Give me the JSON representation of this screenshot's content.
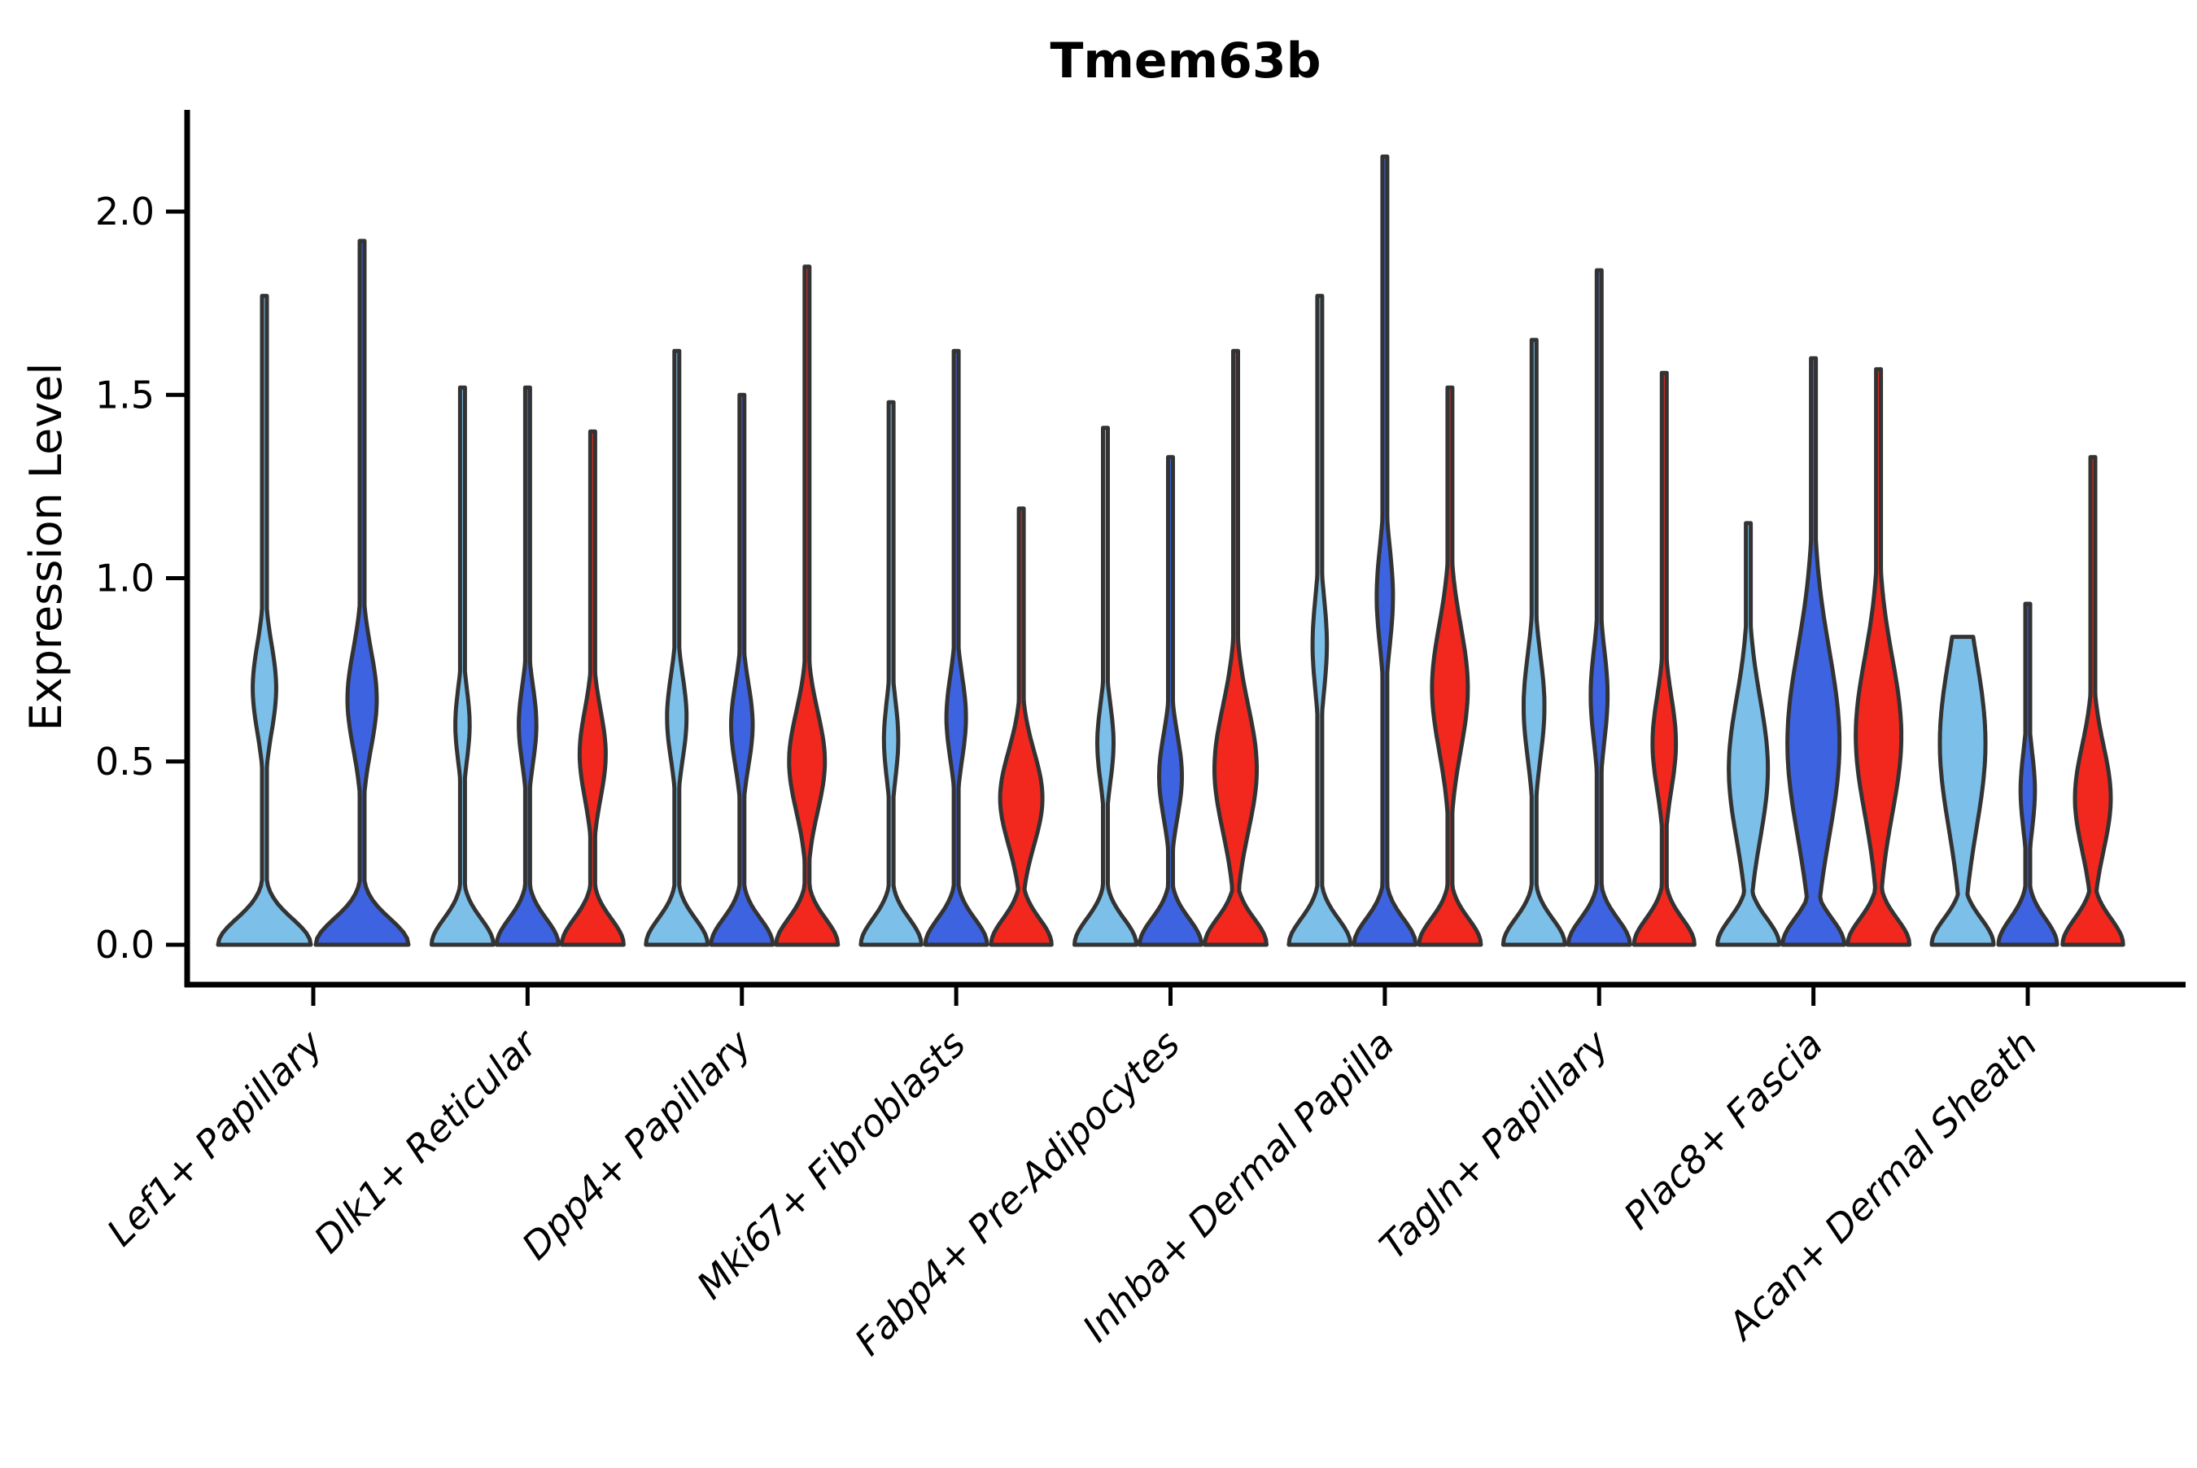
{
  "colors": {
    "light_blue": "#7CC0EA",
    "dark_blue": "#3E63E0",
    "red": "#F2281E",
    "outline": "#333333",
    "axis": "#000000"
  },
  "chart_data": {
    "type": "violin",
    "title": "Tmem63b",
    "xlabel": "",
    "ylabel": "Expression Level",
    "ylim": [
      0.0,
      2.15
    ],
    "yticks": [
      0.0,
      0.5,
      1.0,
      1.5,
      2.0
    ],
    "ytick_labels": [
      "0.0",
      "0.5",
      "1.0",
      "1.5",
      "2.0"
    ],
    "grid": false,
    "legend_position": "none",
    "categories": [
      "Lef1+ Papillary",
      "Dlk1+ Reticular",
      "Dpp4+ Papillary",
      "Mki67+ Fibroblasts",
      "Fabp4+ Pre-Adipocytes",
      "Inhba+ Dermal Papilla",
      "Tagln+ Papillary",
      "Plac8+ Fascia",
      "Acan+ Dermal Sheath"
    ],
    "groups": [
      {
        "category": "Lef1+ Papillary",
        "violins": [
          {
            "color": "light_blue",
            "max_expression": 1.77,
            "zero_width": 0.95,
            "bulge": {
              "center": 0.7,
              "width": 0.24,
              "sigma": 0.17
            }
          },
          {
            "color": "dark_blue",
            "max_expression": 1.92,
            "zero_width": 0.95,
            "bulge": {
              "center": 0.67,
              "width": 0.3,
              "sigma": 0.19
            }
          }
        ]
      },
      {
        "category": "Dlk1+ Reticular",
        "violins": [
          {
            "color": "light_blue",
            "max_expression": 1.52,
            "zero_width": 0.95,
            "bulge": {
              "center": 0.6,
              "width": 0.22,
              "sigma": 0.14
            }
          },
          {
            "color": "dark_blue",
            "max_expression": 1.52,
            "zero_width": 0.95,
            "bulge": {
              "center": 0.6,
              "width": 0.27,
              "sigma": 0.15
            }
          },
          {
            "color": "red",
            "max_expression": 1.4,
            "zero_width": 0.95,
            "bulge": {
              "center": 0.52,
              "width": 0.4,
              "sigma": 0.17
            }
          }
        ]
      },
      {
        "category": "Dpp4+ Papillary",
        "violins": [
          {
            "color": "light_blue",
            "max_expression": 1.62,
            "zero_width": 0.95,
            "bulge": {
              "center": 0.62,
              "width": 0.3,
              "sigma": 0.16
            }
          },
          {
            "color": "dark_blue",
            "max_expression": 1.5,
            "zero_width": 0.95,
            "bulge": {
              "center": 0.6,
              "width": 0.33,
              "sigma": 0.16
            }
          },
          {
            "color": "red",
            "max_expression": 1.85,
            "zero_width": 0.95,
            "bulge": {
              "center": 0.5,
              "width": 0.55,
              "sigma": 0.19
            }
          }
        ]
      },
      {
        "category": "Mki67+ Fibroblasts",
        "violins": [
          {
            "color": "light_blue",
            "max_expression": 1.48,
            "zero_width": 0.93,
            "bulge": {
              "center": 0.56,
              "width": 0.22,
              "sigma": 0.15
            }
          },
          {
            "color": "dark_blue",
            "max_expression": 1.62,
            "zero_width": 0.95,
            "bulge": {
              "center": 0.62,
              "width": 0.3,
              "sigma": 0.16
            }
          },
          {
            "color": "red",
            "max_expression": 1.19,
            "zero_width": 0.93,
            "bulge": {
              "center": 0.4,
              "width": 0.65,
              "sigma": 0.18
            }
          }
        ]
      },
      {
        "category": "Fabp4+ Pre-Adipocytes",
        "violins": [
          {
            "color": "light_blue",
            "max_expression": 1.41,
            "zero_width": 0.95,
            "bulge": {
              "center": 0.55,
              "width": 0.25,
              "sigma": 0.15
            }
          },
          {
            "color": "dark_blue",
            "max_expression": 1.33,
            "zero_width": 0.95,
            "bulge": {
              "center": 0.46,
              "width": 0.35,
              "sigma": 0.16
            }
          },
          {
            "color": "red",
            "max_expression": 1.62,
            "zero_width": 0.95,
            "bulge": {
              "center": 0.48,
              "width": 0.65,
              "sigma": 0.24
            }
          }
        ]
      },
      {
        "category": "Inhba+ Dermal Papilla",
        "violins": [
          {
            "color": "light_blue",
            "max_expression": 1.77,
            "zero_width": 0.95,
            "bulge": {
              "center": 0.82,
              "width": 0.22,
              "sigma": 0.18
            }
          },
          {
            "color": "dark_blue",
            "max_expression": 2.15,
            "zero_width": 0.95,
            "bulge": {
              "center": 0.95,
              "width": 0.25,
              "sigma": 0.19
            }
          },
          {
            "color": "red",
            "max_expression": 1.52,
            "zero_width": 0.95,
            "bulge": {
              "center": 0.7,
              "width": 0.55,
              "sigma": 0.24
            }
          }
        ]
      },
      {
        "category": "Tagln+ Papillary",
        "violins": [
          {
            "color": "light_blue",
            "max_expression": 1.65,
            "zero_width": 0.95,
            "bulge": {
              "center": 0.65,
              "width": 0.32,
              "sigma": 0.2
            }
          },
          {
            "color": "dark_blue",
            "max_expression": 1.84,
            "zero_width": 0.95,
            "bulge": {
              "center": 0.68,
              "width": 0.26,
              "sigma": 0.18
            }
          },
          {
            "color": "red",
            "max_expression": 1.56,
            "zero_width": 0.93,
            "bulge": {
              "center": 0.55,
              "width": 0.36,
              "sigma": 0.18
            }
          }
        ]
      },
      {
        "category": "Plac8+ Fascia",
        "violins": [
          {
            "color": "light_blue",
            "max_expression": 1.15,
            "zero_width": 0.95,
            "bulge": {
              "center": 0.48,
              "width": 0.6,
              "sigma": 0.27
            }
          },
          {
            "color": "dark_blue",
            "max_expression": 1.6,
            "zero_width": 0.95,
            "bulge": {
              "center": 0.55,
              "width": 0.8,
              "sigma": 0.36
            }
          },
          {
            "color": "red",
            "max_expression": 1.57,
            "zero_width": 0.95,
            "bulge": {
              "center": 0.57,
              "width": 0.7,
              "sigma": 0.3
            }
          }
        ]
      },
      {
        "category": "Acan+ Dermal Sheath",
        "violins": [
          {
            "color": "light_blue",
            "max_expression": 0.84,
            "zero_width": 0.95,
            "bulge": {
              "center": 0.55,
              "width": 0.7,
              "sigma": 0.33
            }
          },
          {
            "color": "dark_blue",
            "max_expression": 0.93,
            "zero_width": 0.9,
            "bulge": {
              "center": 0.42,
              "width": 0.22,
              "sigma": 0.15
            }
          },
          {
            "color": "red",
            "max_expression": 1.33,
            "zero_width": 0.93,
            "bulge": {
              "center": 0.4,
              "width": 0.55,
              "sigma": 0.2
            }
          }
        ]
      }
    ]
  }
}
